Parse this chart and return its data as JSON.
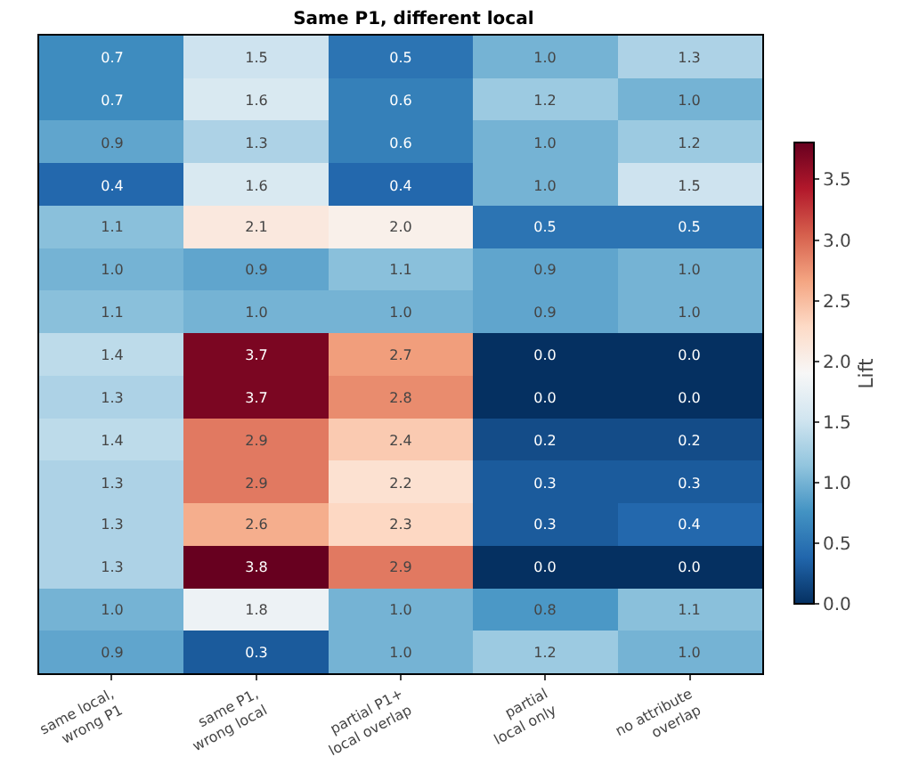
{
  "chart_data": {
    "type": "heatmap",
    "title": "Same P1, different local",
    "clabel": "Lift",
    "categories": [
      "same local,\nwrong P1",
      "same P1,\nwrong local",
      "partial P1+\nlocal overlap",
      "partial\nlocal only",
      "no attribute\noverlap"
    ],
    "y_categories": [
      null,
      null,
      null,
      null,
      null,
      null,
      null,
      null,
      null,
      null,
      null,
      null,
      null,
      null,
      null
    ],
    "cells": [
      [
        0.7,
        1.5,
        0.5,
        1.0,
        1.3
      ],
      [
        0.7,
        1.6,
        0.6,
        1.2,
        1.0
      ],
      [
        0.9,
        1.3,
        0.6,
        1.0,
        1.2
      ],
      [
        0.4,
        1.6,
        0.4,
        1.0,
        1.5
      ],
      [
        1.1,
        2.1,
        2.0,
        0.5,
        0.5
      ],
      [
        1.0,
        0.9,
        1.1,
        0.9,
        1.0
      ],
      [
        1.1,
        1.0,
        1.0,
        0.9,
        1.0
      ],
      [
        1.4,
        3.7,
        2.7,
        0.0,
        0.0
      ],
      [
        1.3,
        3.7,
        2.8,
        0.0,
        0.0
      ],
      [
        1.4,
        2.9,
        2.4,
        0.2,
        0.2
      ],
      [
        1.3,
        2.9,
        2.2,
        0.3,
        0.3
      ],
      [
        1.3,
        2.6,
        2.3,
        0.3,
        0.4
      ],
      [
        1.3,
        3.8,
        2.9,
        0.0,
        0.0
      ],
      [
        1.0,
        1.8,
        1.0,
        0.8,
        1.1
      ],
      [
        0.9,
        0.3,
        1.0,
        1.2,
        1.0
      ]
    ],
    "clim": [
      0,
      3.8
    ],
    "cticks": [
      {
        "value": 0,
        "label": "0.0"
      },
      {
        "value": 0.5,
        "label": "0.5"
      },
      {
        "value": 1,
        "label": "1.0"
      },
      {
        "value": 1.5,
        "label": "1.5"
      },
      {
        "value": 2,
        "label": "2.0"
      },
      {
        "value": 2.5,
        "label": "2.5"
      },
      {
        "value": 3,
        "label": "3.0"
      },
      {
        "value": 3.5,
        "label": "3.5"
      }
    ],
    "cell_labels": [
      [
        "0.7",
        "1.5",
        "0.5",
        "1.0",
        "1.3"
      ],
      [
        "0.7",
        "1.6",
        "0.6",
        "1.2",
        "1.0"
      ],
      [
        "0.9",
        "1.3",
        "0.6",
        "1.0",
        "1.2"
      ],
      [
        "0.4",
        "1.6",
        "0.4",
        "1.0",
        "1.5"
      ],
      [
        "1.1",
        "2.1",
        "2.0",
        "0.5",
        "0.5"
      ],
      [
        "1.0",
        "0.9",
        "1.1",
        "0.9",
        "1.0"
      ],
      [
        "1.1",
        "1.0",
        "1.0",
        "0.9",
        "1.0"
      ],
      [
        "1.4",
        "3.7",
        "2.7",
        "0.0",
        "0.0"
      ],
      [
        "1.3",
        "3.7",
        "2.8",
        "0.0",
        "0.0"
      ],
      [
        "1.4",
        "2.9",
        "2.4",
        "0.2",
        "0.2"
      ],
      [
        "1.3",
        "2.9",
        "2.2",
        "0.3",
        "0.3"
      ],
      [
        "1.3",
        "2.6",
        "2.3",
        "0.3",
        "0.4"
      ],
      [
        "1.3",
        "3.8",
        "2.9",
        "0.0",
        "0.0"
      ],
      [
        "1.0",
        "1.8",
        "1.0",
        "0.8",
        "1.1"
      ],
      [
        "0.9",
        "0.3",
        "1.0",
        "1.2",
        "1.0"
      ]
    ],
    "tick_labels": "x"
  }
}
